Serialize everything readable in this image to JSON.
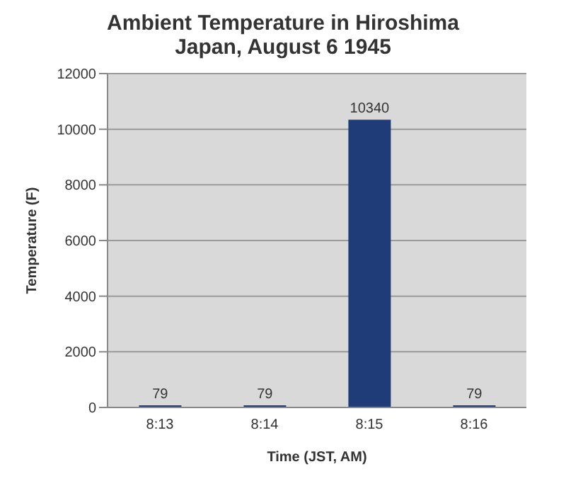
{
  "chart_data": {
    "type": "bar",
    "title": "Ambient Temperature in Hiroshima Japan, August 6 1945",
    "xlabel": "Time (JST, AM)",
    "ylabel": "Temperature (F)",
    "categories": [
      "8:13",
      "8:14",
      "8:15",
      "8:16"
    ],
    "values": [
      79,
      79,
      10340,
      79
    ],
    "color": "#1f3c78",
    "ylim": [
      0,
      12000
    ],
    "yticks": [
      0,
      2000,
      4000,
      6000,
      8000,
      10000,
      12000
    ],
    "grid": "y",
    "data_labels": true
  }
}
